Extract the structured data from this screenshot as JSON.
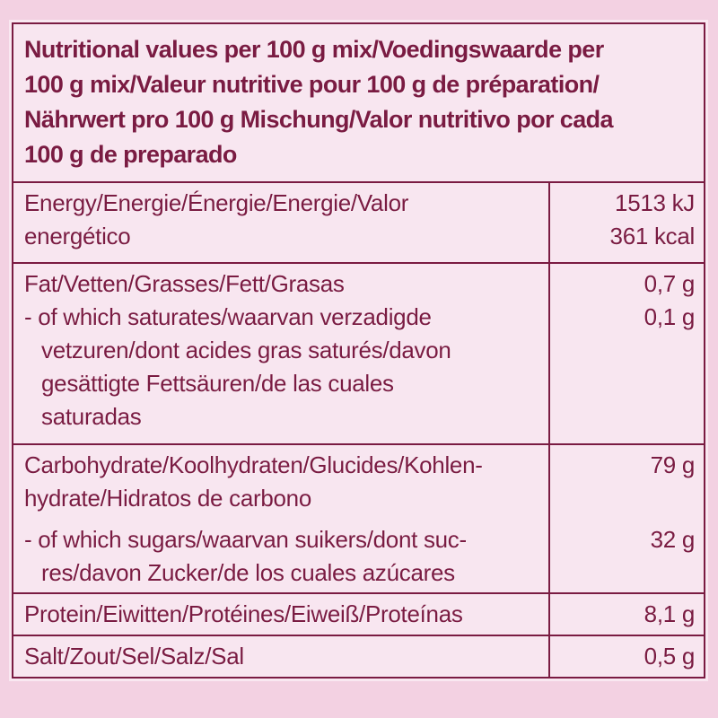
{
  "nutrition_label": {
    "colors": {
      "text": "#7a1b42",
      "border": "#7a1b42",
      "cell_bg": "#f8e6f0",
      "page_bg": "#f3d1e2"
    },
    "header": {
      "lines": [
        "Nutritional values per 100 g mix/Voedingswaarde per",
        "100 g mix/Valeur nutritive pour 100 g de préparation/",
        "Nährwert pro 100 g Mischung/Valor nutritivo por cada",
        "100 g de preparado"
      ]
    },
    "rows": [
      {
        "name": "energy",
        "entries": [
          {
            "label_lines": [
              "Energy/Energie/Énergie/Energie/Valor",
              "energético"
            ],
            "value_lines": [
              "1513 kJ",
              "361 kcal"
            ]
          }
        ]
      },
      {
        "name": "fat",
        "entries": [
          {
            "label_lines": [
              "Fat/Vetten/Grasses/Fett/Grasas"
            ],
            "value_lines": [
              "0,7 g"
            ]
          },
          {
            "label_lines": [
              "- of which saturates/waarvan verzadigde",
              "vetzuren/dont acides gras saturés/davon",
              "gesättigte Fettsäuren/de las cuales",
              "saturadas"
            ],
            "value_lines": [
              "0,1 g"
            ]
          }
        ]
      },
      {
        "name": "carbohydrate",
        "entries": [
          {
            "label_lines": [
              "Carbohydrate/Koolhydraten/Glucides/Kohlen-",
              "hydrate/Hidratos de carbono"
            ],
            "value_lines": [
              "79 g"
            ]
          },
          {
            "label_lines": [
              "- of which sugars/waarvan suikers/dont suc-",
              "res/davon Zucker/de los cuales azúcares"
            ],
            "value_lines": [
              "32 g"
            ]
          }
        ]
      },
      {
        "name": "protein",
        "entries": [
          {
            "label_lines": [
              "Protein/Eiwitten/Protéines/Eiweiß/Proteínas"
            ],
            "value_lines": [
              "8,1 g"
            ]
          }
        ]
      },
      {
        "name": "salt",
        "entries": [
          {
            "label_lines": [
              "Salt/Zout/Sel/Salz/Sal"
            ],
            "value_lines": [
              "0,5 g"
            ]
          }
        ]
      }
    ]
  }
}
